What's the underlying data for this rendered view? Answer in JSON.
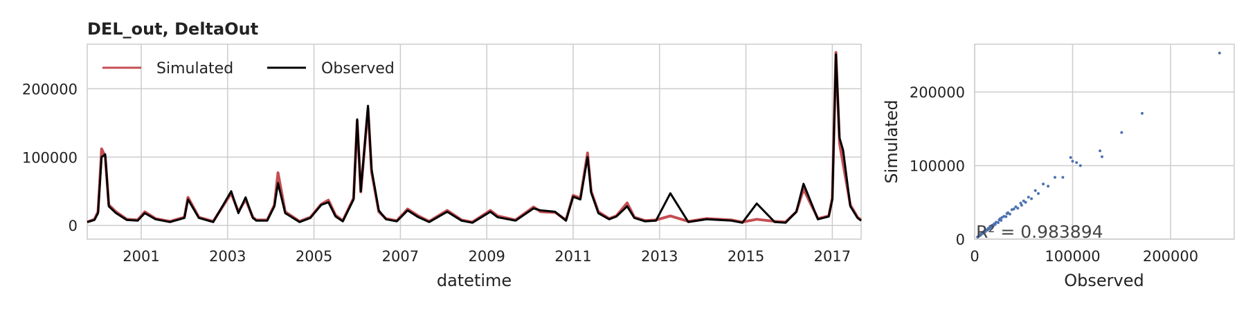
{
  "chart_data": [
    {
      "type": "line",
      "title": "DEL_out, DeltaOut",
      "xlabel": "datetime",
      "ylabel": "",
      "xlim": [
        "1999-10-01",
        "2017-09-01"
      ],
      "ylim": [
        -20000,
        265000
      ],
      "yticks": [
        0,
        100000,
        200000
      ],
      "xticks": [
        "2001",
        "2003",
        "2005",
        "2007",
        "2009",
        "2011",
        "2013",
        "2015",
        "2017"
      ],
      "grid": true,
      "legend": "top-left",
      "series": [
        {
          "name": "Simulated",
          "color": "#c44e52",
          "x": [
            "1999-10",
            "1999-12",
            "2000-01",
            "2000-02",
            "2000-03",
            "2000-04",
            "2000-06",
            "2000-09",
            "2000-12",
            "2001-02",
            "2001-05",
            "2001-09",
            "2002-01",
            "2002-02",
            "2002-05",
            "2002-09",
            "2003-02",
            "2003-04",
            "2003-06",
            "2003-08",
            "2003-09",
            "2003-12",
            "2004-02",
            "2004-03",
            "2004-05",
            "2004-09",
            "2004-12",
            "2005-03",
            "2005-05",
            "2005-07",
            "2005-09",
            "2005-12",
            "2006-01",
            "2006-02",
            "2006-04",
            "2006-05",
            "2006-07",
            "2006-09",
            "2006-12",
            "2007-03",
            "2007-06",
            "2007-09",
            "2008-02",
            "2008-06",
            "2008-09",
            "2009-02",
            "2009-04",
            "2009-09",
            "2010-02",
            "2010-04",
            "2010-08",
            "2010-11",
            "2011-01",
            "2011-03",
            "2011-05",
            "2011-06",
            "2011-08",
            "2011-11",
            "2012-01",
            "2012-04",
            "2012-06",
            "2012-09",
            "2012-12",
            "2013-04",
            "2013-09",
            "2014-02",
            "2014-09",
            "2014-12",
            "2015-04",
            "2015-09",
            "2015-12",
            "2016-03",
            "2016-05",
            "2016-09",
            "2016-12",
            "2017-01",
            "2017-02",
            "2017-03",
            "2017-04",
            "2017-06",
            "2017-08",
            "2017-09"
          ],
          "values": [
            5000,
            9000,
            20000,
            112000,
            101000,
            30000,
            20000,
            9000,
            8000,
            20000,
            10000,
            6000,
            12000,
            41000,
            12000,
            6000,
            47000,
            20000,
            38000,
            12000,
            8000,
            8000,
            30000,
            77000,
            20000,
            6000,
            12000,
            31000,
            37000,
            15000,
            7000,
            40000,
            153000,
            49000,
            171000,
            78000,
            20000,
            10000,
            7000,
            24000,
            14000,
            6000,
            22000,
            8000,
            5000,
            22000,
            14000,
            8000,
            27000,
            20000,
            19000,
            8000,
            44000,
            40000,
            106000,
            50000,
            20000,
            10000,
            14000,
            33000,
            12000,
            7000,
            8000,
            14000,
            6000,
            10000,
            8000,
            5000,
            9000,
            6000,
            5000,
            20000,
            53000,
            10000,
            14000,
            40000,
            253000,
            120000,
            90000,
            30000,
            12000,
            8000
          ]
        },
        {
          "name": "Observed",
          "color": "#000000",
          "x": [
            "1999-10",
            "1999-12",
            "2000-01",
            "2000-02",
            "2000-03",
            "2000-04",
            "2000-06",
            "2000-09",
            "2000-12",
            "2001-02",
            "2001-05",
            "2001-09",
            "2002-01",
            "2002-02",
            "2002-05",
            "2002-09",
            "2003-02",
            "2003-04",
            "2003-06",
            "2003-08",
            "2003-09",
            "2003-12",
            "2004-02",
            "2004-03",
            "2004-05",
            "2004-09",
            "2004-12",
            "2005-03",
            "2005-05",
            "2005-07",
            "2005-09",
            "2005-12",
            "2006-01",
            "2006-02",
            "2006-04",
            "2006-05",
            "2006-07",
            "2006-09",
            "2006-12",
            "2007-03",
            "2007-06",
            "2007-09",
            "2008-02",
            "2008-06",
            "2008-09",
            "2009-02",
            "2009-04",
            "2009-09",
            "2010-02",
            "2010-04",
            "2010-08",
            "2010-11",
            "2011-01",
            "2011-03",
            "2011-05",
            "2011-06",
            "2011-08",
            "2011-11",
            "2012-01",
            "2012-04",
            "2012-06",
            "2012-09",
            "2012-12",
            "2013-04",
            "2013-09",
            "2014-02",
            "2014-09",
            "2014-12",
            "2015-04",
            "2015-09",
            "2015-12",
            "2016-03",
            "2016-05",
            "2016-09",
            "2016-12",
            "2017-01",
            "2017-02",
            "2017-03",
            "2017-04",
            "2017-06",
            "2017-08",
            "2017-09"
          ],
          "values": [
            5000,
            8000,
            18000,
            100000,
            104000,
            28000,
            18000,
            8000,
            7000,
            18000,
            9000,
            5000,
            11000,
            38000,
            11000,
            5000,
            50000,
            18000,
            41000,
            11000,
            7000,
            7000,
            28000,
            62000,
            18000,
            5000,
            11000,
            30000,
            34000,
            13000,
            6000,
            38000,
            155000,
            50000,
            175000,
            82000,
            22000,
            9000,
            6000,
            22000,
            12000,
            5000,
            20000,
            7000,
            4000,
            20000,
            12000,
            7000,
            25000,
            22000,
            20000,
            7000,
            42000,
            38000,
            100000,
            48000,
            18000,
            9000,
            13000,
            28000,
            11000,
            6000,
            7000,
            47000,
            5000,
            9000,
            7000,
            4000,
            32000,
            5000,
            4000,
            20000,
            61000,
            9000,
            13000,
            38000,
            250000,
            128000,
            110000,
            28000,
            11000,
            7000
          ]
        }
      ]
    },
    {
      "type": "scatter",
      "title": "",
      "xlabel": "Observed",
      "ylabel": "Simulated",
      "xlim": [
        0,
        265000
      ],
      "ylim": [
        0,
        265000
      ],
      "xticks": [
        0,
        100000,
        200000
      ],
      "yticks": [
        0,
        100000,
        200000
      ],
      "grid": true,
      "color": "#4c72b0",
      "annotation": "R² = 0.983894",
      "points": [
        [
          3000,
          2800
        ],
        [
          4000,
          4200
        ],
        [
          5000,
          5200
        ],
        [
          5500,
          5000
        ],
        [
          6000,
          6500
        ],
        [
          7000,
          6800
        ],
        [
          7500,
          7800
        ],
        [
          8000,
          7600
        ],
        [
          9000,
          9400
        ],
        [
          9500,
          8800
        ],
        [
          10000,
          10500
        ],
        [
          11000,
          10200
        ],
        [
          12000,
          12600
        ],
        [
          13000,
          12200
        ],
        [
          14000,
          14800
        ],
        [
          15000,
          14000
        ],
        [
          16000,
          16800
        ],
        [
          17000,
          16200
        ],
        [
          18000,
          18900
        ],
        [
          19000,
          18000
        ],
        [
          20000,
          21000
        ],
        [
          21000,
          20000
        ],
        [
          22000,
          23000
        ],
        [
          24000,
          22500
        ],
        [
          25000,
          26000
        ],
        [
          27000,
          25500
        ],
        [
          28000,
          29500
        ],
        [
          30000,
          31000
        ],
        [
          32000,
          30500
        ],
        [
          34000,
          36000
        ],
        [
          36000,
          34000
        ],
        [
          38000,
          40000
        ],
        [
          40000,
          41000
        ],
        [
          42000,
          44000
        ],
        [
          44000,
          42000
        ],
        [
          47000,
          49000
        ],
        [
          50000,
          52000
        ],
        [
          52000,
          50000
        ],
        [
          55000,
          57000
        ],
        [
          58000,
          55000
        ],
        [
          62000,
          66000
        ],
        [
          65000,
          62000
        ],
        [
          70000,
          75000
        ],
        [
          75000,
          72000
        ],
        [
          82000,
          84000
        ],
        [
          90000,
          84000
        ],
        [
          98000,
          111000
        ],
        [
          100000,
          106000
        ],
        [
          104000,
          104000
        ],
        [
          108000,
          100000
        ],
        [
          128000,
          120000
        ],
        [
          130000,
          112000
        ],
        [
          150000,
          145000
        ],
        [
          171000,
          171000
        ],
        [
          250000,
          253000
        ],
        [
          6000,
          5500
        ],
        [
          8500,
          9200
        ],
        [
          11500,
          12800
        ],
        [
          16500,
          15800
        ],
        [
          26000,
          27800
        ],
        [
          33000,
          34800
        ],
        [
          48000,
          46000
        ]
      ]
    }
  ]
}
